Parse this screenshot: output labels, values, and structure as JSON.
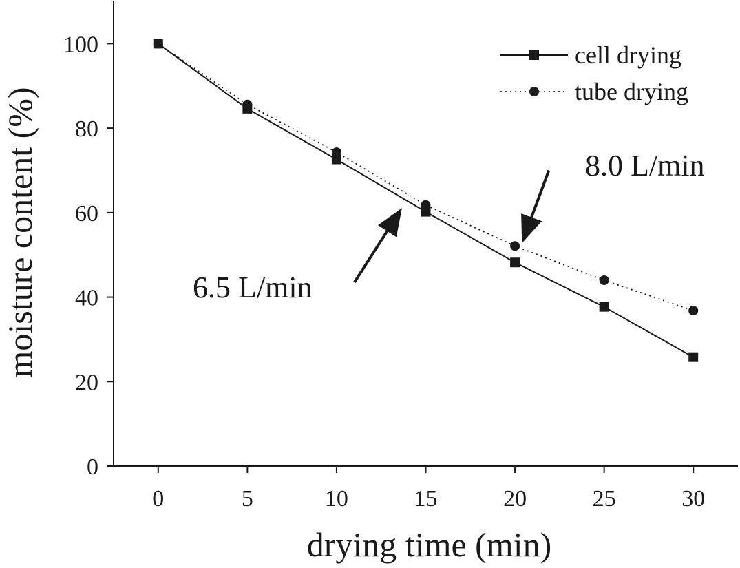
{
  "chart_data": {
    "type": "line",
    "title": "",
    "xlabel": "drying time (min)",
    "ylabel": "moisture content (%)",
    "xlim": [
      -2.5,
      32.5
    ],
    "ylim": [
      0,
      110
    ],
    "x": [
      0,
      5,
      10,
      15,
      20,
      25,
      30
    ],
    "xticks": [
      0,
      5,
      10,
      15,
      20,
      25,
      30
    ],
    "yticks": [
      0,
      20,
      40,
      60,
      80,
      100
    ],
    "grid": false,
    "legend_position": "top-right",
    "series": [
      {
        "name": "cell drying",
        "marker": "square",
        "line_style": "solid",
        "values": [
          100,
          84.6,
          72.6,
          60.2,
          48.2,
          37.7,
          25.8
        ]
      },
      {
        "name": "tube drying",
        "marker": "circle",
        "line_style": "dotted",
        "values": [
          100,
          85.6,
          74.3,
          61.8,
          52.1,
          44.0,
          36.8
        ]
      }
    ],
    "annotations": [
      {
        "text": "8.0 L/min",
        "refers_to": "tube drying",
        "arrow_from": [
          21.9,
          70
        ],
        "arrow_to": [
          20.5,
          54
        ]
      },
      {
        "text": "6.5 L/min",
        "refers_to": "cell drying",
        "arrow_from": [
          11,
          43.5
        ],
        "arrow_to": [
          13.5,
          60
        ]
      }
    ],
    "colors": {
      "line": "#1a1a1a",
      "background": "#ffffff"
    }
  }
}
